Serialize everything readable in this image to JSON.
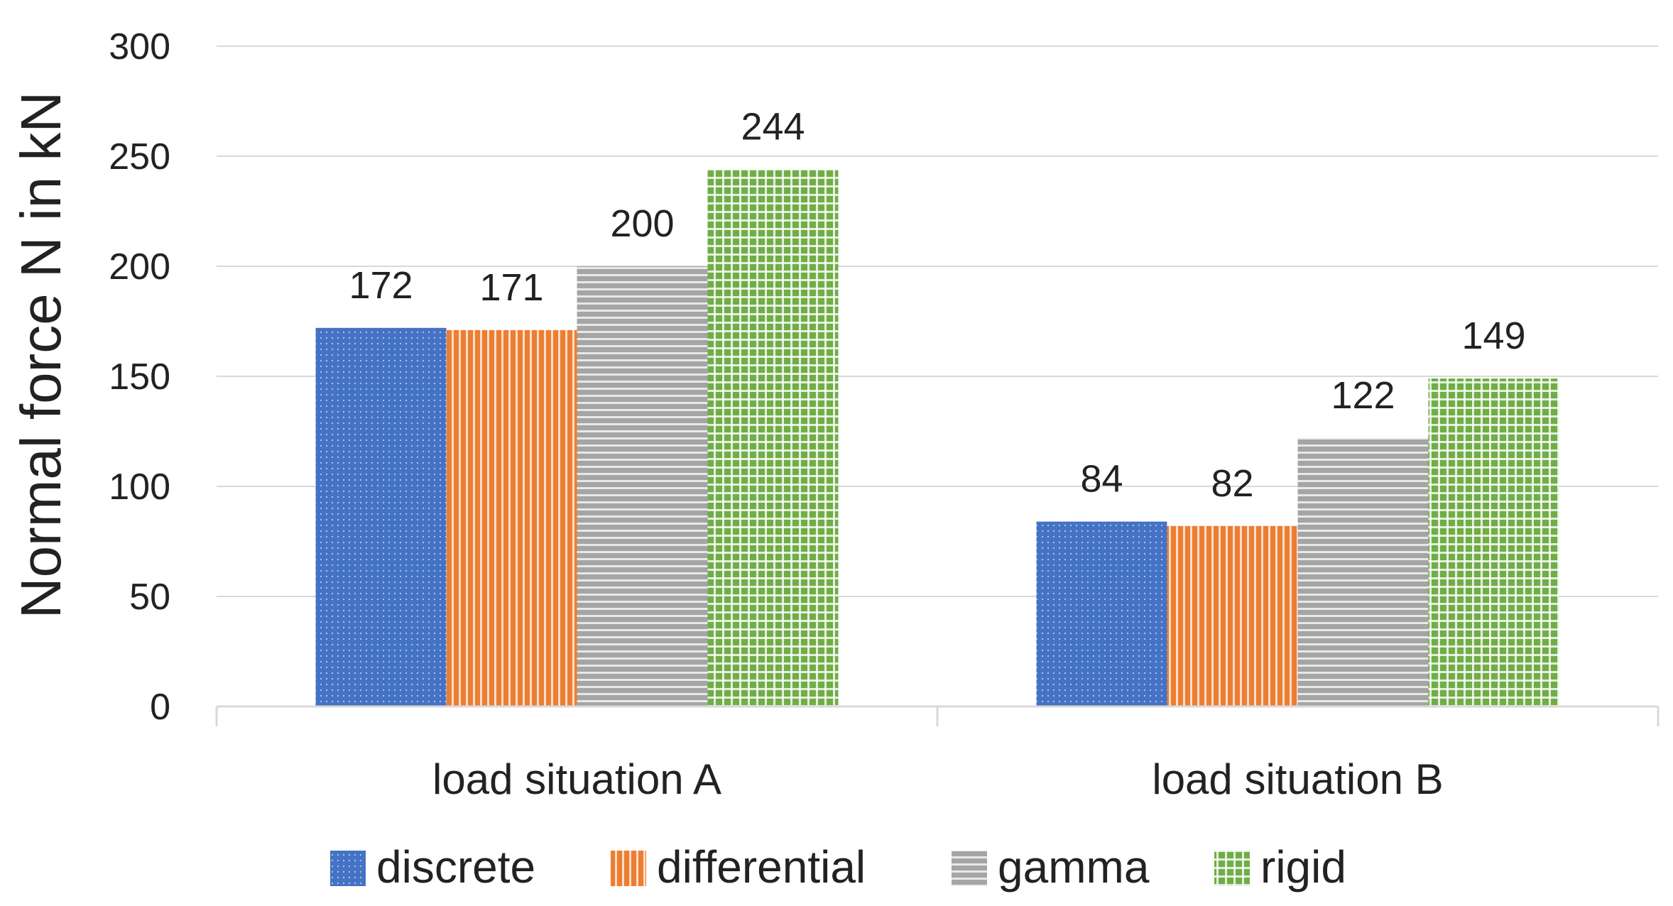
{
  "chart_data": {
    "type": "bar",
    "title": "",
    "xlabel": "",
    "ylabel": "Normal force N in kN",
    "ylim": [
      0,
      300
    ],
    "yticks": [
      0,
      50,
      100,
      150,
      200,
      250,
      300
    ],
    "grid": true,
    "legend_position": "bottom",
    "categories": [
      "load situation A",
      "load situation B"
    ],
    "series": [
      {
        "name": "discrete",
        "values": [
          172,
          84
        ],
        "color": "#4472C4",
        "pattern": "dots"
      },
      {
        "name": "differential",
        "values": [
          171,
          82
        ],
        "color": "#ED7D31",
        "pattern": "vertical-stripes"
      },
      {
        "name": "gamma",
        "values": [
          200,
          122
        ],
        "color": "#A5A5A5",
        "pattern": "horizontal-stripes"
      },
      {
        "name": "rigid",
        "values": [
          244,
          149
        ],
        "color": "#70AD47",
        "pattern": "grid"
      }
    ]
  }
}
